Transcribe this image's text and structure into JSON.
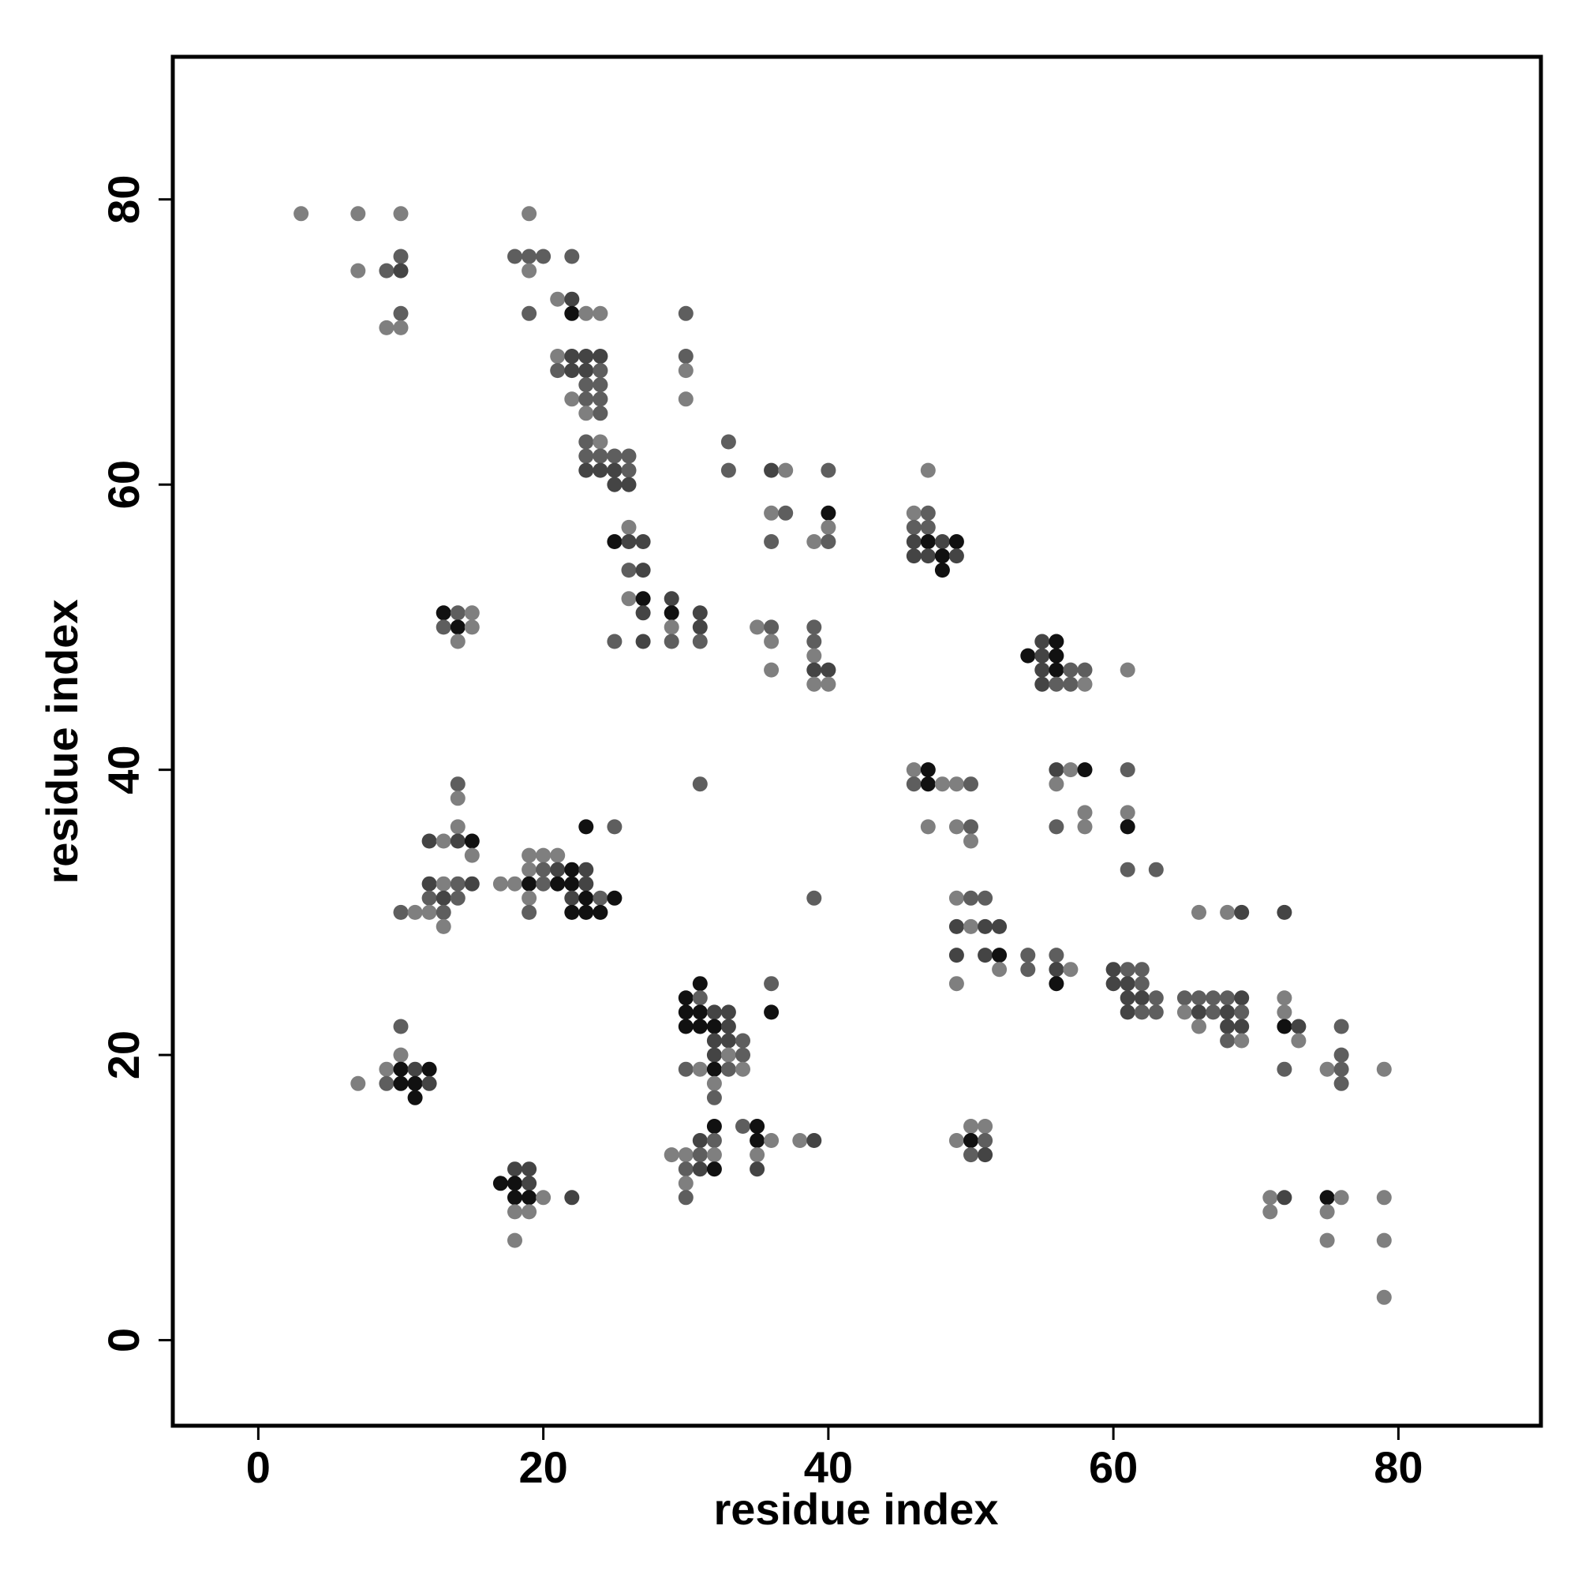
{
  "chart_data": {
    "type": "scatter",
    "title": "",
    "xlabel": "residue index",
    "ylabel": "residue index",
    "xlim": [
      -6,
      90
    ],
    "ylim": [
      -6,
      90
    ],
    "xticks": [
      0,
      20,
      40,
      60,
      80
    ],
    "yticks": [
      0,
      20,
      40,
      60,
      80
    ],
    "grid": false,
    "point_colors": {
      "1": "#111111",
      "2": "#444444",
      "3": "#5e5e5e",
      "4": "#7f7f7f"
    },
    "points": [
      [
        3,
        79,
        4
      ],
      [
        7,
        79,
        4
      ],
      [
        10,
        79,
        4
      ],
      [
        19,
        79,
        4
      ],
      [
        18,
        76,
        3
      ],
      [
        19,
        76,
        3
      ],
      [
        20,
        76,
        3
      ],
      [
        22,
        76,
        3
      ],
      [
        10,
        76,
        3
      ],
      [
        7,
        75,
        4
      ],
      [
        9,
        75,
        3
      ],
      [
        10,
        75,
        2
      ],
      [
        19,
        75,
        4
      ],
      [
        21,
        73,
        4
      ],
      [
        22,
        73,
        2
      ],
      [
        22,
        72,
        1
      ],
      [
        23,
        72,
        4
      ],
      [
        24,
        72,
        4
      ],
      [
        10,
        72,
        3
      ],
      [
        19,
        72,
        3
      ],
      [
        30,
        72,
        3
      ],
      [
        9,
        71,
        4
      ],
      [
        10,
        71,
        4
      ],
      [
        21,
        69,
        4
      ],
      [
        22,
        69,
        2
      ],
      [
        23,
        69,
        2
      ],
      [
        24,
        69,
        2
      ],
      [
        30,
        69,
        3
      ],
      [
        21,
        68,
        3
      ],
      [
        22,
        68,
        2
      ],
      [
        23,
        68,
        2
      ],
      [
        24,
        68,
        3
      ],
      [
        30,
        68,
        4
      ],
      [
        23,
        67,
        3
      ],
      [
        24,
        67,
        3
      ],
      [
        22,
        66,
        4
      ],
      [
        23,
        66,
        3
      ],
      [
        24,
        66,
        3
      ],
      [
        30,
        66,
        4
      ],
      [
        23,
        65,
        4
      ],
      [
        24,
        65,
        3
      ],
      [
        33,
        63,
        3
      ],
      [
        23,
        63,
        3
      ],
      [
        24,
        63,
        4
      ],
      [
        23,
        62,
        3
      ],
      [
        24,
        62,
        3
      ],
      [
        25,
        62,
        3
      ],
      [
        26,
        62,
        3
      ],
      [
        23,
        61,
        2
      ],
      [
        24,
        61,
        2
      ],
      [
        25,
        61,
        2
      ],
      [
        26,
        61,
        3
      ],
      [
        33,
        61,
        3
      ],
      [
        36,
        61,
        2
      ],
      [
        37,
        61,
        4
      ],
      [
        40,
        61,
        3
      ],
      [
        47,
        61,
        4
      ],
      [
        25,
        60,
        2
      ],
      [
        26,
        60,
        2
      ],
      [
        36,
        58,
        4
      ],
      [
        37,
        58,
        3
      ],
      [
        40,
        58,
        1
      ],
      [
        46,
        58,
        4
      ],
      [
        47,
        58,
        3
      ],
      [
        40,
        57,
        4
      ],
      [
        46,
        57,
        3
      ],
      [
        47,
        57,
        3
      ],
      [
        26,
        57,
        4
      ],
      [
        25,
        56,
        1
      ],
      [
        26,
        56,
        2
      ],
      [
        27,
        56,
        2
      ],
      [
        36,
        56,
        3
      ],
      [
        39,
        56,
        4
      ],
      [
        40,
        56,
        3
      ],
      [
        46,
        56,
        2
      ],
      [
        47,
        56,
        1
      ],
      [
        48,
        56,
        2
      ],
      [
        49,
        56,
        1
      ],
      [
        46,
        55,
        2
      ],
      [
        47,
        55,
        2
      ],
      [
        48,
        55,
        1
      ],
      [
        49,
        55,
        2
      ],
      [
        26,
        54,
        3
      ],
      [
        27,
        54,
        2
      ],
      [
        48,
        54,
        1
      ],
      [
        26,
        52,
        4
      ],
      [
        27,
        52,
        1
      ],
      [
        29,
        52,
        2
      ],
      [
        13,
        51,
        1
      ],
      [
        14,
        51,
        3
      ],
      [
        15,
        51,
        4
      ],
      [
        27,
        51,
        2
      ],
      [
        29,
        51,
        1
      ],
      [
        31,
        51,
        2
      ],
      [
        13,
        50,
        3
      ],
      [
        14,
        50,
        1
      ],
      [
        15,
        50,
        4
      ],
      [
        29,
        50,
        4
      ],
      [
        31,
        50,
        2
      ],
      [
        35,
        50,
        4
      ],
      [
        36,
        50,
        3
      ],
      [
        39,
        50,
        3
      ],
      [
        14,
        49,
        4
      ],
      [
        25,
        49,
        3
      ],
      [
        27,
        49,
        2
      ],
      [
        29,
        49,
        3
      ],
      [
        31,
        49,
        3
      ],
      [
        36,
        49,
        4
      ],
      [
        39,
        49,
        3
      ],
      [
        55,
        49,
        2
      ],
      [
        56,
        49,
        1
      ],
      [
        54,
        48,
        1
      ],
      [
        55,
        48,
        2
      ],
      [
        56,
        48,
        1
      ],
      [
        39,
        48,
        4
      ],
      [
        55,
        47,
        2
      ],
      [
        56,
        47,
        1
      ],
      [
        57,
        47,
        3
      ],
      [
        58,
        47,
        3
      ],
      [
        61,
        47,
        4
      ],
      [
        36,
        47,
        4
      ],
      [
        39,
        47,
        2
      ],
      [
        40,
        47,
        2
      ],
      [
        55,
        46,
        2
      ],
      [
        56,
        46,
        3
      ],
      [
        57,
        46,
        3
      ],
      [
        58,
        46,
        4
      ],
      [
        39,
        46,
        4
      ],
      [
        40,
        46,
        4
      ],
      [
        46,
        40,
        4
      ],
      [
        47,
        40,
        1
      ],
      [
        56,
        40,
        2
      ],
      [
        57,
        40,
        4
      ],
      [
        58,
        40,
        1
      ],
      [
        61,
        40,
        3
      ],
      [
        14,
        39,
        3
      ],
      [
        31,
        39,
        3
      ],
      [
        46,
        39,
        3
      ],
      [
        47,
        39,
        1
      ],
      [
        48,
        39,
        4
      ],
      [
        49,
        39,
        4
      ],
      [
        50,
        39,
        3
      ],
      [
        56,
        39,
        4
      ],
      [
        14,
        38,
        4
      ],
      [
        58,
        37,
        4
      ],
      [
        61,
        37,
        4
      ],
      [
        14,
        36,
        4
      ],
      [
        23,
        36,
        1
      ],
      [
        25,
        36,
        3
      ],
      [
        47,
        36,
        4
      ],
      [
        49,
        36,
        4
      ],
      [
        50,
        36,
        3
      ],
      [
        56,
        36,
        3
      ],
      [
        58,
        36,
        4
      ],
      [
        61,
        36,
        1
      ],
      [
        12,
        35,
        2
      ],
      [
        13,
        35,
        4
      ],
      [
        14,
        35,
        2
      ],
      [
        15,
        35,
        1
      ],
      [
        50,
        35,
        4
      ],
      [
        15,
        34,
        4
      ],
      [
        19,
        34,
        4
      ],
      [
        20,
        34,
        4
      ],
      [
        21,
        34,
        4
      ],
      [
        19,
        33,
        4
      ],
      [
        20,
        33,
        3
      ],
      [
        21,
        33,
        2
      ],
      [
        22,
        33,
        1
      ],
      [
        23,
        33,
        2
      ],
      [
        61,
        33,
        3
      ],
      [
        63,
        33,
        3
      ],
      [
        17,
        32,
        4
      ],
      [
        18,
        32,
        4
      ],
      [
        19,
        32,
        1
      ],
      [
        20,
        32,
        3
      ],
      [
        21,
        32,
        1
      ],
      [
        22,
        32,
        1
      ],
      [
        23,
        32,
        2
      ],
      [
        12,
        32,
        2
      ],
      [
        13,
        32,
        4
      ],
      [
        14,
        32,
        3
      ],
      [
        15,
        32,
        2
      ],
      [
        12,
        31,
        3
      ],
      [
        13,
        31,
        2
      ],
      [
        14,
        31,
        3
      ],
      [
        19,
        31,
        4
      ],
      [
        22,
        31,
        2
      ],
      [
        23,
        31,
        1
      ],
      [
        24,
        31,
        3
      ],
      [
        25,
        31,
        1
      ],
      [
        39,
        31,
        3
      ],
      [
        49,
        31,
        4
      ],
      [
        50,
        31,
        3
      ],
      [
        51,
        31,
        3
      ],
      [
        10,
        30,
        3
      ],
      [
        11,
        30,
        4
      ],
      [
        12,
        30,
        4
      ],
      [
        13,
        30,
        3
      ],
      [
        19,
        30,
        3
      ],
      [
        22,
        30,
        1
      ],
      [
        23,
        30,
        1
      ],
      [
        24,
        30,
        1
      ],
      [
        66,
        30,
        4
      ],
      [
        68,
        30,
        4
      ],
      [
        69,
        30,
        2
      ],
      [
        72,
        30,
        2
      ],
      [
        13,
        29,
        4
      ],
      [
        49,
        29,
        2
      ],
      [
        50,
        29,
        4
      ],
      [
        51,
        29,
        2
      ],
      [
        52,
        29,
        2
      ],
      [
        49,
        27,
        2
      ],
      [
        51,
        27,
        2
      ],
      [
        52,
        27,
        1
      ],
      [
        54,
        27,
        3
      ],
      [
        56,
        27,
        3
      ],
      [
        52,
        26,
        4
      ],
      [
        54,
        26,
        3
      ],
      [
        56,
        26,
        2
      ],
      [
        57,
        26,
        4
      ],
      [
        60,
        26,
        2
      ],
      [
        61,
        26,
        3
      ],
      [
        62,
        26,
        3
      ],
      [
        31,
        25,
        1
      ],
      [
        36,
        25,
        3
      ],
      [
        49,
        25,
        4
      ],
      [
        56,
        25,
        1
      ],
      [
        60,
        25,
        2
      ],
      [
        61,
        25,
        2
      ],
      [
        62,
        25,
        3
      ],
      [
        30,
        24,
        1
      ],
      [
        31,
        24,
        3
      ],
      [
        61,
        24,
        2
      ],
      [
        62,
        24,
        2
      ],
      [
        63,
        24,
        3
      ],
      [
        65,
        24,
        3
      ],
      [
        66,
        24,
        3
      ],
      [
        67,
        24,
        3
      ],
      [
        68,
        24,
        3
      ],
      [
        69,
        24,
        2
      ],
      [
        72,
        24,
        4
      ],
      [
        30,
        23,
        1
      ],
      [
        31,
        23,
        1
      ],
      [
        32,
        23,
        2
      ],
      [
        33,
        23,
        2
      ],
      [
        36,
        23,
        1
      ],
      [
        61,
        23,
        2
      ],
      [
        62,
        23,
        3
      ],
      [
        63,
        23,
        3
      ],
      [
        65,
        23,
        4
      ],
      [
        66,
        23,
        2
      ],
      [
        67,
        23,
        3
      ],
      [
        68,
        23,
        2
      ],
      [
        69,
        23,
        3
      ],
      [
        72,
        23,
        4
      ],
      [
        10,
        22,
        3
      ],
      [
        30,
        22,
        1
      ],
      [
        31,
        22,
        1
      ],
      [
        32,
        22,
        1
      ],
      [
        33,
        22,
        2
      ],
      [
        66,
        22,
        4
      ],
      [
        68,
        22,
        2
      ],
      [
        69,
        22,
        2
      ],
      [
        72,
        22,
        1
      ],
      [
        73,
        22,
        2
      ],
      [
        76,
        22,
        3
      ],
      [
        32,
        21,
        2
      ],
      [
        33,
        21,
        2
      ],
      [
        34,
        21,
        3
      ],
      [
        68,
        21,
        3
      ],
      [
        69,
        21,
        4
      ],
      [
        73,
        21,
        4
      ],
      [
        10,
        20,
        4
      ],
      [
        32,
        20,
        2
      ],
      [
        33,
        20,
        4
      ],
      [
        34,
        20,
        3
      ],
      [
        76,
        20,
        3
      ],
      [
        9,
        19,
        4
      ],
      [
        10,
        19,
        1
      ],
      [
        11,
        19,
        2
      ],
      [
        12,
        19,
        1
      ],
      [
        30,
        19,
        3
      ],
      [
        31,
        19,
        4
      ],
      [
        32,
        19,
        1
      ],
      [
        33,
        19,
        3
      ],
      [
        34,
        19,
        4
      ],
      [
        72,
        19,
        3
      ],
      [
        75,
        19,
        4
      ],
      [
        76,
        19,
        3
      ],
      [
        79,
        19,
        4
      ],
      [
        7,
        18,
        4
      ],
      [
        9,
        18,
        3
      ],
      [
        10,
        18,
        1
      ],
      [
        11,
        18,
        1
      ],
      [
        12,
        18,
        2
      ],
      [
        32,
        18,
        4
      ],
      [
        76,
        18,
        3
      ],
      [
        11,
        17,
        1
      ],
      [
        32,
        17,
        3
      ],
      [
        32,
        15,
        1
      ],
      [
        34,
        15,
        3
      ],
      [
        35,
        15,
        1
      ],
      [
        50,
        15,
        4
      ],
      [
        51,
        15,
        4
      ],
      [
        31,
        14,
        2
      ],
      [
        32,
        14,
        3
      ],
      [
        35,
        14,
        1
      ],
      [
        36,
        14,
        4
      ],
      [
        38,
        14,
        4
      ],
      [
        39,
        14,
        2
      ],
      [
        49,
        14,
        4
      ],
      [
        50,
        14,
        1
      ],
      [
        51,
        14,
        3
      ],
      [
        29,
        13,
        4
      ],
      [
        30,
        13,
        4
      ],
      [
        31,
        13,
        3
      ],
      [
        32,
        13,
        4
      ],
      [
        35,
        13,
        4
      ],
      [
        50,
        13,
        3
      ],
      [
        51,
        13,
        2
      ],
      [
        18,
        12,
        2
      ],
      [
        19,
        12,
        2
      ],
      [
        30,
        12,
        3
      ],
      [
        31,
        12,
        2
      ],
      [
        32,
        12,
        1
      ],
      [
        35,
        12,
        2
      ],
      [
        17,
        11,
        1
      ],
      [
        18,
        11,
        1
      ],
      [
        19,
        11,
        2
      ],
      [
        30,
        11,
        4
      ],
      [
        18,
        10,
        1
      ],
      [
        19,
        10,
        1
      ],
      [
        20,
        10,
        4
      ],
      [
        22,
        10,
        2
      ],
      [
        30,
        10,
        3
      ],
      [
        71,
        10,
        4
      ],
      [
        72,
        10,
        2
      ],
      [
        75,
        10,
        1
      ],
      [
        76,
        10,
        4
      ],
      [
        79,
        10,
        4
      ],
      [
        18,
        9,
        4
      ],
      [
        19,
        9,
        4
      ],
      [
        71,
        9,
        4
      ],
      [
        75,
        9,
        4
      ],
      [
        18,
        7,
        4
      ],
      [
        75,
        7,
        4
      ],
      [
        79,
        7,
        4
      ],
      [
        79,
        3,
        4
      ]
    ]
  }
}
